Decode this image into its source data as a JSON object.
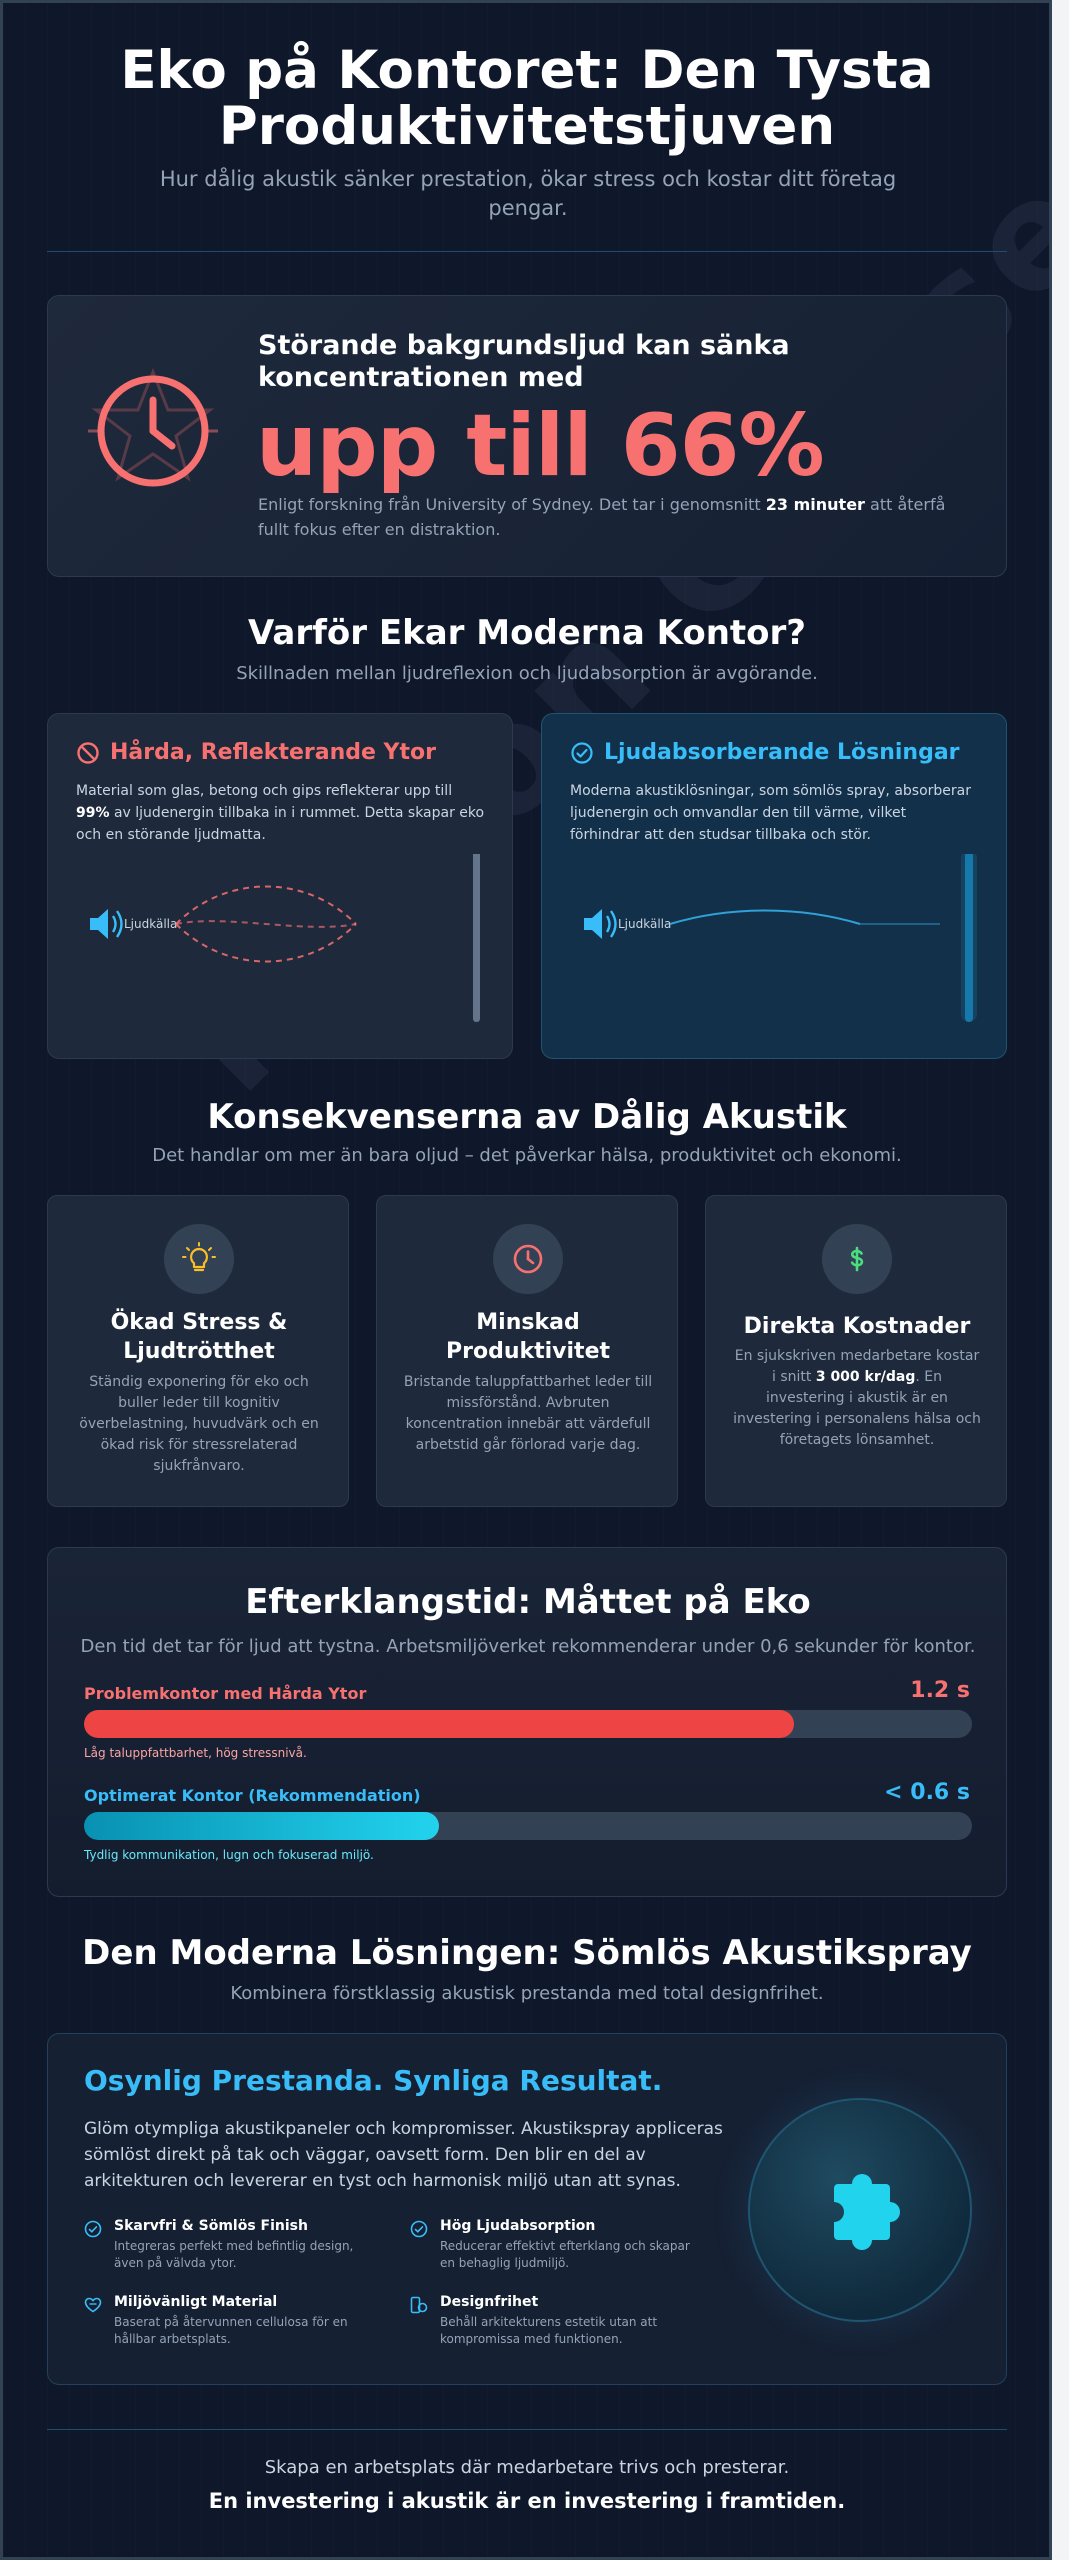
{
  "header": {
    "title": "Eko på Kontoret: Den Tysta Produktivitetstjuven",
    "subtitle": "Hur dålig akustik sänker prestation, ökar stress och kostar ditt företag pengar."
  },
  "watermark": "Notion Cruise",
  "stat": {
    "icon": "clock-icon",
    "kicker": "Störande bakgrundsljud kan sänka koncentrationen med",
    "big": "upp till 66%",
    "note_pre": "Enligt forskning från University of Sydney. Det tar i genomsnitt ",
    "note_bold": "23 minuter",
    "note_post": " att återfå fullt fokus efter en distraktion."
  },
  "why": {
    "title": "Varför Ekar Moderna Kontor?",
    "subtitle": "Skillnaden mellan ljudreflexion och ljudabsorption är avgörande.",
    "hard": {
      "icon": "ban-icon",
      "title": "Hårda, Reflekterande Ytor",
      "text_pre": "Material som glas, betong och gips reflekterar upp till ",
      "text_bold": "99%",
      "text_post": " av ljudenergin tillbaka in i rummet. Detta skapar eko och en störande ljudmatta.",
      "source_label": "Ljudkälla"
    },
    "soft": {
      "icon": "check-circle-icon",
      "title": "Ljudabsorberande Lösningar",
      "text": "Moderna akustiklösningar, som sömlös spray, absorberar ljudenergin och omvandlar den till värme, vilket förhindrar att den studsar tillbaka och stör.",
      "source_label": "Ljudkälla"
    }
  },
  "consequences": {
    "title": "Konsekvenserna av Dålig Akustik",
    "subtitle": "Det handlar om mer än bara oljud – det påverkar hälsa, produktivitet och ekonomi.",
    "cards": [
      {
        "icon": "lightbulb-icon",
        "title": "Ökad Stress & Ljudtrötthet",
        "text": "Ständig exponering för eko och buller leder till kognitiv överbelastning, huvudvärk och en ökad risk för stressrelaterad sjukfrånvaro."
      },
      {
        "icon": "clock-icon",
        "title": "Minskad Produktivitet",
        "text": "Bristande taluppfattbarhet leder till missförstånd. Avbruten koncentration innebär att värdefull arbetstid går förlorad varje dag."
      },
      {
        "icon": "dollar-icon",
        "title": "Direkta Kostnader",
        "text_pre": "En sjukskriven medarbetare kostar i snitt ",
        "text_bold": "3 000 kr/dag",
        "text_post": ". En investering i akustik är en investering i personalens hälsa och företagets lönsamhet."
      }
    ]
  },
  "reverb": {
    "title": "Efterklangstid: Måttet på Eko",
    "subtitle": "Den tid det tar för ljud att tystna. Arbetsmiljöverket rekommenderar under 0,6 sekunder för kontor.",
    "bars": [
      {
        "label": "Problemkontor med Hårda Ytor",
        "value": "1.2 s",
        "fill": 0.8,
        "note": "Låg taluppfattbarhet, hög stressnivå.",
        "color": "#ef4444"
      },
      {
        "label": "Optimerat Kontor (Rekommendation)",
        "value": "< 0.6 s",
        "fill": 0.4,
        "note": "Tydlig kommunikation, lugn och fokuserad miljö.",
        "color": "#22d3ee"
      }
    ]
  },
  "solution": {
    "title": "Den Moderna Lösningen: Sömlös Akustikspray",
    "subtitle": "Kombinera förstklassig akustisk prestanda med total designfrihet.",
    "card_title": "Osynlig Prestanda. Synliga Resultat.",
    "card_text": "Glöm otympliga akustikpaneler och kompromisser. Akustikspray appliceras sömlöst direkt på tak och väggar, oavsett form. Den blir en del av arkitekturen och levererar en tyst och harmonisk miljö utan att synas.",
    "features": [
      {
        "icon": "check-circle-icon",
        "title": "Skarvfri & Sömlös Finish",
        "text": "Integreras perfekt med befintlig design, även på välvda ytor."
      },
      {
        "icon": "check-circle-icon",
        "title": "Hög Ljudabsorption",
        "text": "Reducerar effektivt efterklang och skapar en behaglig ljudmiljö."
      },
      {
        "icon": "heart-leaf-icon",
        "title": "Miljövänligt Material",
        "text": "Baserat på återvunnen cellulosa för en hållbar arbetsplats."
      },
      {
        "icon": "shapes-icon",
        "title": "Designfrihet",
        "text": "Behåll arkitekturens estetik utan att kompromissa med funktionen."
      }
    ],
    "orb_icon": "puzzle-icon"
  },
  "footer": {
    "line1": "Skapa en arbetsplats där medarbetare trivs och presterar.",
    "line2": "En investering i akustik är en investering i framtiden."
  }
}
